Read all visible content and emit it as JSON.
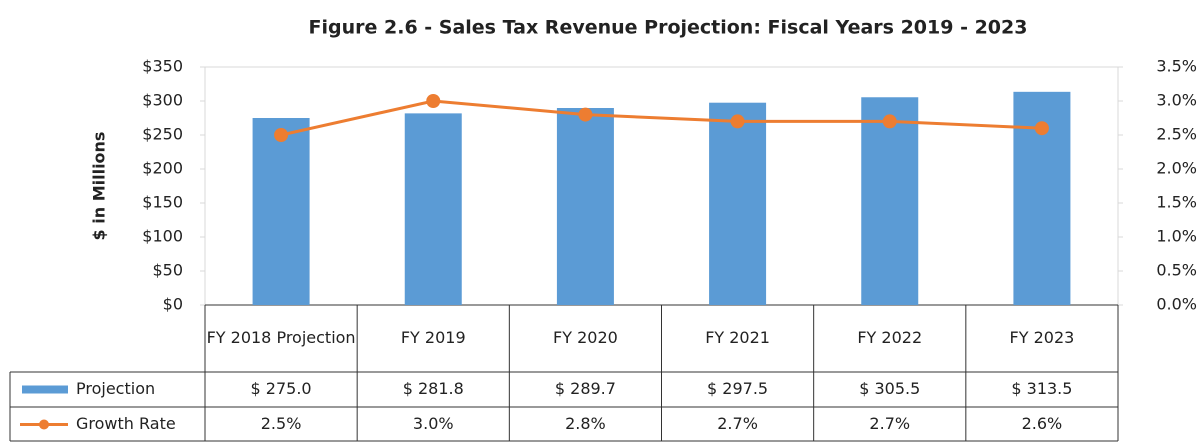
{
  "chart_data": {
    "type": "bar-line-table",
    "title": "Figure 2.6 - Sales Tax Revenue Projection: Fiscal Years 2019 - 2023",
    "y_label": "$ in Millions",
    "categories": [
      "FY 2018 Projection",
      "FY 2019",
      "FY 2020",
      "FY 2021",
      "FY 2022",
      "FY 2023"
    ],
    "series": [
      {
        "name": "Projection",
        "kind": "bar",
        "color": "#5b9bd5",
        "values": [
          275.0,
          281.8,
          289.7,
          297.5,
          305.5,
          313.5
        ],
        "value_labels": [
          "$ 275.0",
          "$ 281.8",
          "$ 289.7",
          "$ 297.5",
          "$ 305.5",
          "$ 313.5"
        ]
      },
      {
        "name": "Growth Rate",
        "kind": "line",
        "axis": "y2",
        "color": "#ed7d31",
        "values": [
          2.5,
          3.0,
          2.8,
          2.7,
          2.7,
          2.6
        ],
        "value_labels": [
          "2.5%",
          "3.0%",
          "2.8%",
          "2.7%",
          "2.7%",
          "2.6%"
        ]
      }
    ],
    "ylim": [
      0,
      350
    ],
    "yticks": [
      {
        "value": 0,
        "label": "$0"
      },
      {
        "value": 50,
        "label": "$50"
      },
      {
        "value": 100,
        "label": "$100"
      },
      {
        "value": 150,
        "label": "$150"
      },
      {
        "value": 200,
        "label": "$200"
      },
      {
        "value": 250,
        "label": "$250"
      },
      {
        "value": 300,
        "label": "$300"
      },
      {
        "value": 350,
        "label": "$350"
      }
    ],
    "y2lim": [
      0,
      3.5
    ],
    "y2ticks": [
      {
        "value": 0,
        "label": "0.0%"
      },
      {
        "value": 0.5,
        "label": "0.5%"
      },
      {
        "value": 1.0,
        "label": "1.0%"
      },
      {
        "value": 1.5,
        "label": "1.5%"
      },
      {
        "value": 2.0,
        "label": "2.0%"
      },
      {
        "value": 2.5,
        "label": "2.5%"
      },
      {
        "value": 3.0,
        "label": "3.0%"
      },
      {
        "value": 3.5,
        "label": "3.5%"
      }
    ],
    "grid": false
  }
}
